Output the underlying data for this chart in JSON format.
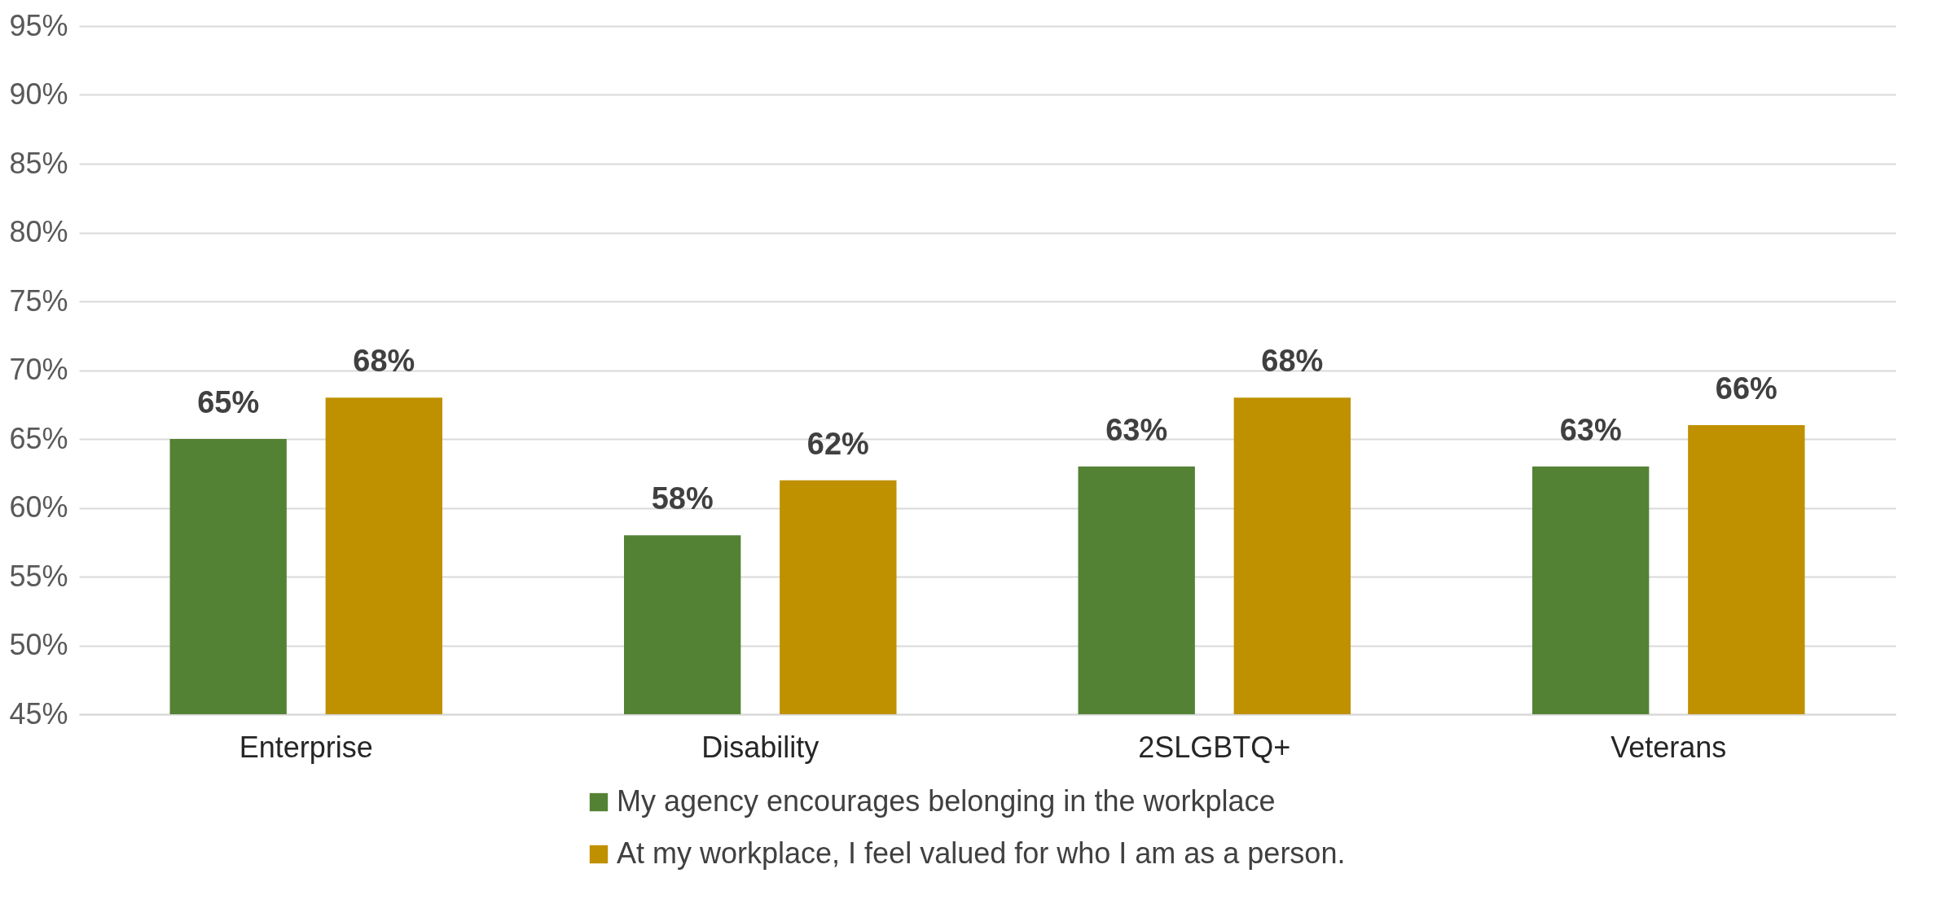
{
  "chart_data": {
    "type": "bar",
    "categories": [
      "Enterprise",
      "Disability",
      "2SLGBTQ+",
      "Veterans"
    ],
    "series": [
      {
        "name": "My agency encourages belonging in the workplace",
        "color": "#548235",
        "values": [
          65,
          58,
          63,
          63
        ],
        "value_labels": [
          "65%",
          "58%",
          "63%",
          "63%"
        ]
      },
      {
        "name": "At my workplace, I feel valued for who I am as a person.",
        "color": "#bf9000",
        "values": [
          68,
          62,
          68,
          66
        ],
        "value_labels": [
          "68%",
          "62%",
          "68%",
          "66%"
        ]
      }
    ],
    "ylim": [
      45,
      95
    ],
    "yticks": [
      {
        "value": 45,
        "label": "45%"
      },
      {
        "value": 50,
        "label": "50%"
      },
      {
        "value": 55,
        "label": "55%"
      },
      {
        "value": 60,
        "label": "60%"
      },
      {
        "value": 65,
        "label": "65%"
      },
      {
        "value": 70,
        "label": "70%"
      },
      {
        "value": 75,
        "label": "75%"
      },
      {
        "value": 80,
        "label": "80%"
      },
      {
        "value": 85,
        "label": "85%"
      },
      {
        "value": 90,
        "label": "90%"
      },
      {
        "value": 95,
        "label": "95%"
      }
    ],
    "grid": "y",
    "legend": "bottom"
  }
}
